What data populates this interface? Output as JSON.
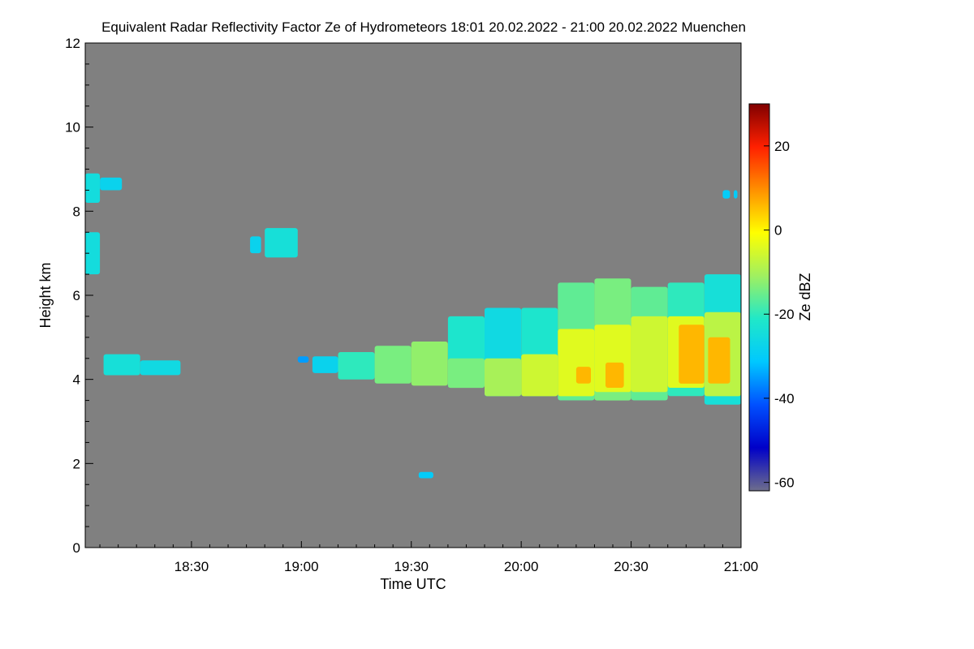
{
  "chart_data": {
    "type": "heatmap",
    "title": "Equivalent Radar Reflectivity Factor Ze of Hydrometeors   18:01 20.02.2022 - 21:00 20.02.2022 Muenchen",
    "xlabel": "Time UTC",
    "ylabel": "Height km",
    "x_range_minutes": [
      1081,
      1260
    ],
    "x_ticks": [
      {
        "minute": 1110,
        "label": "18:30"
      },
      {
        "minute": 1140,
        "label": "19:00"
      },
      {
        "minute": 1170,
        "label": "19:30"
      },
      {
        "minute": 1200,
        "label": "20:00"
      },
      {
        "minute": 1230,
        "label": "20:30"
      },
      {
        "minute": 1260,
        "label": "21:00"
      }
    ],
    "ylim": [
      0,
      12
    ],
    "y_ticks": [
      0,
      2,
      4,
      6,
      8,
      10,
      12
    ],
    "background_color": "#808080",
    "colorbar": {
      "label": "Ze dBZ",
      "range": [
        -62,
        30
      ],
      "ticks": [
        -60,
        -40,
        -20,
        0,
        20
      ],
      "colors": [
        "#6e6e8c",
        "#0000c8",
        "#0050ff",
        "#00c8ff",
        "#20e8c8",
        "#a0f060",
        "#ffff00",
        "#ff9000",
        "#ff2000",
        "#800000"
      ]
    },
    "cells": [
      {
        "t0": 1081,
        "t1": 1085,
        "h0": 8.2,
        "h1": 8.9,
        "dbz": -25
      },
      {
        "t0": 1085,
        "t1": 1091,
        "h0": 8.5,
        "h1": 8.8,
        "dbz": -28
      },
      {
        "t0": 1081,
        "t1": 1085,
        "h0": 6.5,
        "h1": 7.5,
        "dbz": -25
      },
      {
        "t0": 1086,
        "t1": 1096,
        "h0": 4.1,
        "h1": 4.6,
        "dbz": -24
      },
      {
        "t0": 1096,
        "t1": 1107,
        "h0": 4.1,
        "h1": 4.45,
        "dbz": -26
      },
      {
        "t0": 1126,
        "t1": 1129,
        "h0": 7.0,
        "h1": 7.4,
        "dbz": -28
      },
      {
        "t0": 1130,
        "t1": 1139,
        "h0": 6.9,
        "h1": 7.6,
        "dbz": -24
      },
      {
        "t0": 1139,
        "t1": 1142,
        "h0": 4.4,
        "h1": 4.55,
        "dbz": -35
      },
      {
        "t0": 1143,
        "t1": 1150,
        "h0": 4.15,
        "h1": 4.55,
        "dbz": -28
      },
      {
        "t0": 1150,
        "t1": 1160,
        "h0": 4.0,
        "h1": 4.65,
        "dbz": -20
      },
      {
        "t0": 1160,
        "t1": 1170,
        "h0": 3.9,
        "h1": 4.8,
        "dbz": -14
      },
      {
        "t0": 1170,
        "t1": 1180,
        "h0": 3.85,
        "h1": 4.9,
        "dbz": -12
      },
      {
        "t0": 1172,
        "t1": 1176,
        "h0": 1.65,
        "h1": 1.8,
        "dbz": -30
      },
      {
        "t0": 1180,
        "t1": 1190,
        "h0": 3.8,
        "h1": 5.5,
        "dbz": -22
      },
      {
        "t0": 1180,
        "t1": 1190,
        "h0": 3.8,
        "h1": 4.5,
        "dbz": -14
      },
      {
        "t0": 1190,
        "t1": 1200,
        "h0": 3.6,
        "h1": 5.7,
        "dbz": -26
      },
      {
        "t0": 1190,
        "t1": 1200,
        "h0": 3.6,
        "h1": 4.5,
        "dbz": -10
      },
      {
        "t0": 1200,
        "t1": 1210,
        "h0": 3.6,
        "h1": 5.7,
        "dbz": -22
      },
      {
        "t0": 1200,
        "t1": 1210,
        "h0": 3.6,
        "h1": 4.6,
        "dbz": -6
      },
      {
        "t0": 1210,
        "t1": 1220,
        "h0": 3.5,
        "h1": 6.3,
        "dbz": -16
      },
      {
        "t0": 1210,
        "t1": 1220,
        "h0": 3.6,
        "h1": 5.2,
        "dbz": -4
      },
      {
        "t0": 1215,
        "t1": 1219,
        "h0": 3.9,
        "h1": 4.3,
        "dbz": 6
      },
      {
        "t0": 1220,
        "t1": 1230,
        "h0": 3.5,
        "h1": 6.4,
        "dbz": -14
      },
      {
        "t0": 1220,
        "t1": 1230,
        "h0": 3.7,
        "h1": 5.3,
        "dbz": -4
      },
      {
        "t0": 1223,
        "t1": 1228,
        "h0": 3.8,
        "h1": 4.4,
        "dbz": 6
      },
      {
        "t0": 1230,
        "t1": 1240,
        "h0": 3.5,
        "h1": 6.2,
        "dbz": -16
      },
      {
        "t0": 1230,
        "t1": 1240,
        "h0": 3.7,
        "h1": 5.5,
        "dbz": -6
      },
      {
        "t0": 1240,
        "t1": 1250,
        "h0": 3.6,
        "h1": 6.3,
        "dbz": -20
      },
      {
        "t0": 1240,
        "t1": 1250,
        "h0": 3.8,
        "h1": 5.5,
        "dbz": -4
      },
      {
        "t0": 1243,
        "t1": 1250,
        "h0": 3.9,
        "h1": 5.3,
        "dbz": 6
      },
      {
        "t0": 1250,
        "t1": 1260,
        "h0": 3.4,
        "h1": 6.5,
        "dbz": -24
      },
      {
        "t0": 1250,
        "t1": 1260,
        "h0": 3.6,
        "h1": 5.6,
        "dbz": -8
      },
      {
        "t0": 1251,
        "t1": 1257,
        "h0": 3.9,
        "h1": 5.0,
        "dbz": 6
      },
      {
        "t0": 1255,
        "t1": 1257,
        "h0": 8.3,
        "h1": 8.5,
        "dbz": -30
      },
      {
        "t0": 1258,
        "t1": 1259,
        "h0": 8.3,
        "h1": 8.5,
        "dbz": -30
      }
    ]
  }
}
